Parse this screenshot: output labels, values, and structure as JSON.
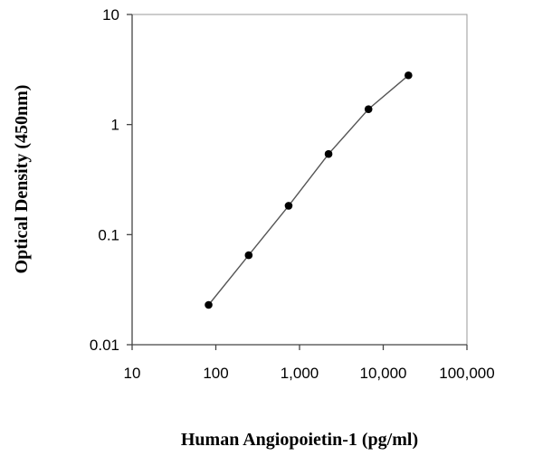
{
  "chart_data": {
    "type": "line",
    "title": "",
    "xlabel": "Human Angiopoietin-1  (pg/ml)",
    "ylabel": "Optical Density (450nm)",
    "xscale": "log",
    "yscale": "log",
    "xlim": [
      10,
      100000
    ],
    "ylim": [
      0.01,
      10
    ],
    "xticks": [
      {
        "value": 10,
        "label": "10"
      },
      {
        "value": 100,
        "label": "100"
      },
      {
        "value": 1000,
        "label": "1,000"
      },
      {
        "value": 10000,
        "label": "10,000"
      },
      {
        "value": 100000,
        "label": "100,000"
      }
    ],
    "yticks": [
      {
        "value": 0.01,
        "label": "0.01"
      },
      {
        "value": 0.1,
        "label": "0.1"
      },
      {
        "value": 1,
        "label": "1"
      },
      {
        "value": 10,
        "label": "10"
      }
    ],
    "grid": false,
    "legend": "none",
    "series": [
      {
        "x": [
          82,
          247,
          741,
          2222,
          6667,
          20000
        ],
        "y": [
          0.023,
          0.065,
          0.183,
          0.54,
          1.38,
          2.8
        ],
        "color": "#555555",
        "marker_color": "#000000"
      }
    ]
  }
}
